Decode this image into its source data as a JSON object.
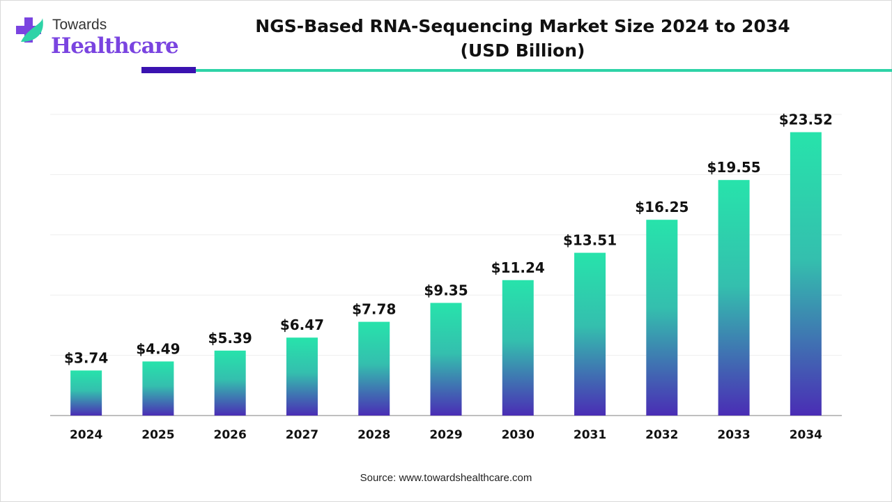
{
  "brand": {
    "line1": "Towards",
    "line2": "Healthcare"
  },
  "title_line1": "NGS-Based RNA-Sequencing Market Size 2024 to 2034",
  "title_line2": "(USD Billion)",
  "source": "Source: www.towardshealthcare.com",
  "colors": {
    "bar_top": "#27e3ab",
    "bar_bottom": "#4a2db5",
    "accent_dark": "#3a12b0",
    "accent_teal": "#2ed3a7"
  },
  "chart_data": {
    "type": "bar",
    "title": "NGS-Based RNA-Sequencing Market Size 2024 to 2034 (USD Billion)",
    "categories": [
      "2024",
      "2025",
      "2026",
      "2027",
      "2028",
      "2029",
      "2030",
      "2031",
      "2032",
      "2033",
      "2034"
    ],
    "values": [
      3.74,
      4.49,
      5.39,
      6.47,
      7.78,
      9.35,
      11.24,
      13.51,
      16.25,
      19.55,
      23.52
    ],
    "data_labels": [
      "$3.74",
      "$4.49",
      "$5.39",
      "$6.47",
      "$7.78",
      "$9.35",
      "$11.24",
      "$13.51",
      "$16.25",
      "$19.55",
      "$23.52"
    ],
    "xlabel": "",
    "ylabel": "",
    "ylim": [
      0,
      25
    ],
    "grid": true,
    "y_axis_labels_shown": false
  }
}
